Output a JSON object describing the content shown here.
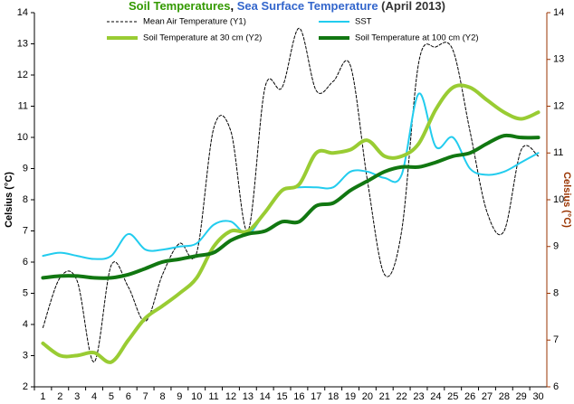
{
  "chart_data": {
    "type": "line",
    "title_parts": [
      {
        "text": "Soil Temperatures",
        "color": "#339900"
      },
      {
        "text": ", ",
        "color": "#000000"
      },
      {
        "text": "Sea Surface Temperature",
        "color": "#3366cc"
      },
      {
        "text": " (April 2013)",
        "color": "#333333"
      }
    ],
    "y_label": "Celsius (°C)",
    "y2_label": "Celsius (°C)",
    "y2_color": "#993300",
    "categories": [
      "1",
      "2",
      "3",
      "4",
      "5",
      "6",
      "7",
      "8",
      "9",
      "10",
      "11",
      "12",
      "13",
      "14",
      "15",
      "16",
      "17",
      "18",
      "19",
      "20",
      "21",
      "22",
      "23",
      "24",
      "25",
      "26",
      "27",
      "28",
      "29",
      "30"
    ],
    "ylim": [
      2,
      14
    ],
    "yticks": [
      2,
      3,
      4,
      5,
      6,
      7,
      8,
      9,
      10,
      11,
      12,
      13,
      14
    ],
    "y2lim": [
      6,
      14
    ],
    "y2ticks": [
      6,
      7,
      8,
      9,
      10,
      11,
      12,
      13,
      14
    ],
    "series": [
      {
        "name": "Mean Air Temperature (Y1)",
        "color": "#000000",
        "dashed": true,
        "width": 1,
        "values": [
          3.9,
          5.5,
          5.4,
          2.8,
          5.9,
          5.2,
          4.1,
          5.6,
          6.6,
          6.3,
          10.3,
          10.2,
          7.0,
          11.6,
          11.6,
          13.5,
          11.5,
          11.8,
          12.3,
          8.6,
          5.6,
          7.0,
          12.4,
          12.9,
          12.8,
          10.2,
          7.6,
          7.0,
          9.6,
          9.4
        ]
      },
      {
        "name": "SST",
        "color": "#22ccee",
        "width": 2,
        "values": [
          6.2,
          6.3,
          6.2,
          6.1,
          6.2,
          6.9,
          6.4,
          6.4,
          6.5,
          6.6,
          7.2,
          7.3,
          6.9,
          7.6,
          8.3,
          8.4,
          8.4,
          8.4,
          8.9,
          8.9,
          8.7,
          8.8,
          11.4,
          9.7,
          10.0,
          9.0,
          8.8,
          8.9,
          9.2,
          9.5
        ]
      },
      {
        "name": "Soil Temperature at 30 cm (Y2)",
        "color": "#99cc33",
        "width": 4,
        "axis": "y2",
        "values": [
          6.93,
          6.67,
          6.67,
          6.73,
          6.53,
          7.0,
          7.47,
          7.73,
          8.0,
          8.33,
          9.0,
          9.33,
          9.33,
          9.73,
          10.2,
          10.33,
          11.0,
          11.0,
          11.07,
          11.27,
          10.93,
          10.93,
          11.2,
          11.93,
          12.4,
          12.4,
          12.13,
          11.87,
          11.73,
          11.87
        ]
      },
      {
        "name": "Soil Temperature at 100 cm (Y2)",
        "color": "#117711",
        "width": 4,
        "axis": "y2",
        "values": [
          8.33,
          8.37,
          8.37,
          8.33,
          8.33,
          8.4,
          8.53,
          8.67,
          8.73,
          8.8,
          8.87,
          9.13,
          9.27,
          9.33,
          9.53,
          9.53,
          9.87,
          9.93,
          10.2,
          10.4,
          10.6,
          10.7,
          10.7,
          10.8,
          10.93,
          11.0,
          11.2,
          11.37,
          11.33,
          11.33
        ]
      }
    ]
  }
}
